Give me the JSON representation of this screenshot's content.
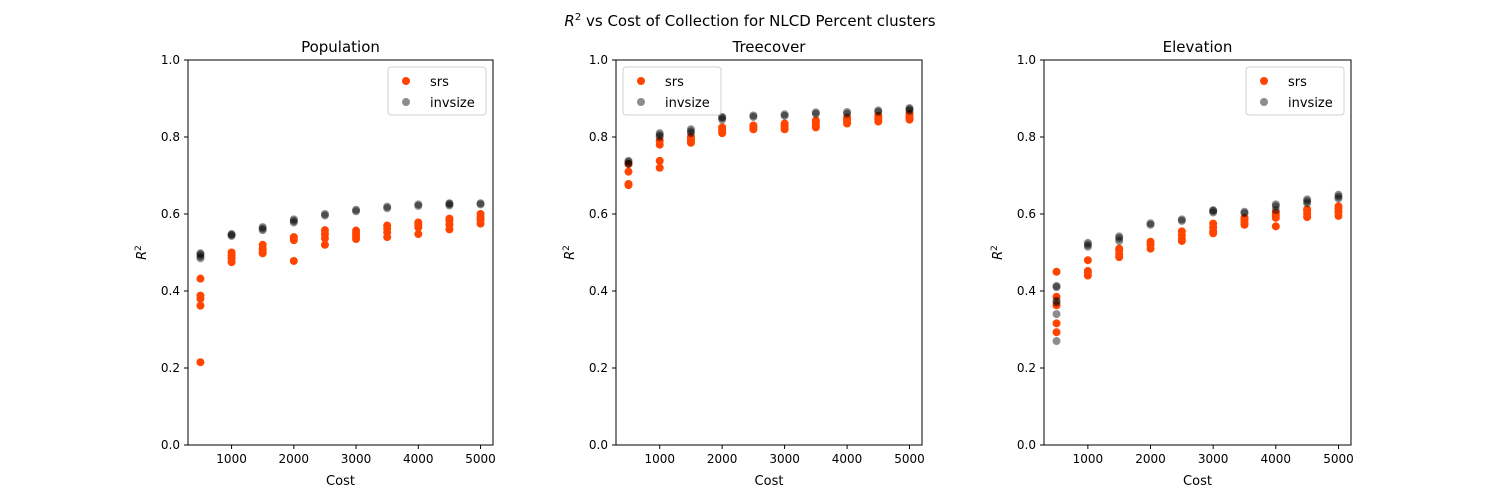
{
  "figure": {
    "suptitle_main": "R",
    "suptitle_sup": "2",
    "suptitle_rest": " vs Cost of Collection for NLCD Percent clusters"
  },
  "chart_data": [
    {
      "type": "scatter",
      "title": "Population",
      "xlabel": "Cost",
      "ylabel": "R^2",
      "xlim": [
        300,
        5200
      ],
      "ylim": [
        0,
        1
      ],
      "xticks": [
        1000,
        2000,
        3000,
        4000,
        5000
      ],
      "yticks": [
        0.0,
        0.2,
        0.4,
        0.6,
        0.8,
        1.0
      ],
      "legend_position": "top-right",
      "series": [
        {
          "name": "invsize",
          "color": "#000000",
          "points": [
            [
              500,
              0.485
            ],
            [
              500,
              0.49
            ],
            [
              500,
              0.495
            ],
            [
              500,
              0.498
            ],
            [
              1000,
              0.543
            ],
            [
              1000,
              0.546
            ],
            [
              1000,
              0.548
            ],
            [
              1500,
              0.558
            ],
            [
              1500,
              0.562
            ],
            [
              1500,
              0.566
            ],
            [
              2000,
              0.578
            ],
            [
              2000,
              0.582
            ],
            [
              2000,
              0.586
            ],
            [
              2500,
              0.596
            ],
            [
              2500,
              0.6
            ],
            [
              3000,
              0.607
            ],
            [
              3000,
              0.611
            ],
            [
              3500,
              0.615
            ],
            [
              3500,
              0.619
            ],
            [
              4000,
              0.621
            ],
            [
              4000,
              0.625
            ],
            [
              4500,
              0.622
            ],
            [
              4500,
              0.626
            ],
            [
              4500,
              0.628
            ],
            [
              5000,
              0.625
            ],
            [
              5000,
              0.628
            ]
          ]
        },
        {
          "name": "srs",
          "color": "#ff4500",
          "points": [
            [
              500,
              0.215
            ],
            [
              500,
              0.362
            ],
            [
              500,
              0.38
            ],
            [
              500,
              0.388
            ],
            [
              500,
              0.432
            ],
            [
              1000,
              0.475
            ],
            [
              1000,
              0.485
            ],
            [
              1000,
              0.492
            ],
            [
              1000,
              0.5
            ],
            [
              1500,
              0.498
            ],
            [
              1500,
              0.505
            ],
            [
              1500,
              0.51
            ],
            [
              1500,
              0.52
            ],
            [
              2000,
              0.478
            ],
            [
              2000,
              0.532
            ],
            [
              2000,
              0.538
            ],
            [
              2000,
              0.54
            ],
            [
              2500,
              0.52
            ],
            [
              2500,
              0.537
            ],
            [
              2500,
              0.548
            ],
            [
              2500,
              0.558
            ],
            [
              3000,
              0.535
            ],
            [
              3000,
              0.542
            ],
            [
              3000,
              0.55
            ],
            [
              3000,
              0.557
            ],
            [
              3500,
              0.54
            ],
            [
              3500,
              0.552
            ],
            [
              3500,
              0.563
            ],
            [
              3500,
              0.57
            ],
            [
              4000,
              0.548
            ],
            [
              4000,
              0.565
            ],
            [
              4000,
              0.572
            ],
            [
              4000,
              0.578
            ],
            [
              4500,
              0.56
            ],
            [
              4500,
              0.572
            ],
            [
              4500,
              0.582
            ],
            [
              4500,
              0.588
            ],
            [
              5000,
              0.575
            ],
            [
              5000,
              0.585
            ],
            [
              5000,
              0.592
            ],
            [
              5000,
              0.6
            ]
          ]
        }
      ]
    },
    {
      "type": "scatter",
      "title": "Treecover",
      "xlabel": "Cost",
      "ylabel": "R^2",
      "xlim": [
        300,
        5200
      ],
      "ylim": [
        0,
        1
      ],
      "xticks": [
        1000,
        2000,
        3000,
        4000,
        5000
      ],
      "yticks": [
        0.0,
        0.2,
        0.4,
        0.6,
        0.8,
        1.0
      ],
      "legend_position": "top-left",
      "series": [
        {
          "name": "invsize",
          "color": "#000000",
          "points": [
            [
              500,
              0.73
            ],
            [
              500,
              0.735
            ],
            [
              500,
              0.738
            ],
            [
              1000,
              0.8
            ],
            [
              1000,
              0.805
            ],
            [
              1000,
              0.81
            ],
            [
              1500,
              0.81
            ],
            [
              1500,
              0.815
            ],
            [
              1500,
              0.82
            ],
            [
              2000,
              0.845
            ],
            [
              2000,
              0.85
            ],
            [
              2000,
              0.852
            ],
            [
              2500,
              0.852
            ],
            [
              2500,
              0.856
            ],
            [
              3000,
              0.855
            ],
            [
              3000,
              0.859
            ],
            [
              3500,
              0.86
            ],
            [
              3500,
              0.864
            ],
            [
              4000,
              0.86
            ],
            [
              4000,
              0.865
            ],
            [
              4500,
              0.865
            ],
            [
              4500,
              0.869
            ],
            [
              5000,
              0.868
            ],
            [
              5000,
              0.872
            ],
            [
              5000,
              0.875
            ]
          ]
        },
        {
          "name": "srs",
          "color": "#ff4500",
          "points": [
            [
              500,
              0.675
            ],
            [
              500,
              0.678
            ],
            [
              500,
              0.71
            ],
            [
              500,
              0.73
            ],
            [
              1000,
              0.72
            ],
            [
              1000,
              0.738
            ],
            [
              1000,
              0.78
            ],
            [
              1000,
              0.79
            ],
            [
              1500,
              0.785
            ],
            [
              1500,
              0.79
            ],
            [
              1500,
              0.795
            ],
            [
              1500,
              0.8
            ],
            [
              2000,
              0.81
            ],
            [
              2000,
              0.815
            ],
            [
              2000,
              0.82
            ],
            [
              2000,
              0.825
            ],
            [
              2500,
              0.82
            ],
            [
              2500,
              0.825
            ],
            [
              2500,
              0.83
            ],
            [
              3000,
              0.82
            ],
            [
              3000,
              0.825
            ],
            [
              3000,
              0.83
            ],
            [
              3000,
              0.835
            ],
            [
              3500,
              0.825
            ],
            [
              3500,
              0.83
            ],
            [
              3500,
              0.838
            ],
            [
              3500,
              0.843
            ],
            [
              4000,
              0.835
            ],
            [
              4000,
              0.84
            ],
            [
              4000,
              0.845
            ],
            [
              4000,
              0.85
            ],
            [
              4500,
              0.84
            ],
            [
              4500,
              0.845
            ],
            [
              4500,
              0.85
            ],
            [
              4500,
              0.855
            ],
            [
              5000,
              0.845
            ],
            [
              5000,
              0.85
            ],
            [
              5000,
              0.855
            ],
            [
              5000,
              0.86
            ]
          ]
        }
      ]
    },
    {
      "type": "scatter",
      "title": "Elevation",
      "xlabel": "Cost",
      "ylabel": "R^2",
      "xlim": [
        300,
        5200
      ],
      "ylim": [
        0,
        1
      ],
      "xticks": [
        1000,
        2000,
        3000,
        4000,
        5000
      ],
      "yticks": [
        0.0,
        0.2,
        0.4,
        0.6,
        0.8,
        1.0
      ],
      "legend_position": "top-right",
      "series": [
        {
          "name": "invsize",
          "color": "#000000",
          "points": [
            [
              500,
              0.27
            ],
            [
              500,
              0.34
            ],
            [
              500,
              0.37
            ],
            [
              500,
              0.375
            ],
            [
              500,
              0.41
            ],
            [
              500,
              0.413
            ],
            [
              1000,
              0.515
            ],
            [
              1000,
              0.52
            ],
            [
              1000,
              0.525
            ],
            [
              1500,
              0.53
            ],
            [
              1500,
              0.537
            ],
            [
              1500,
              0.542
            ],
            [
              2000,
              0.572
            ],
            [
              2000,
              0.576
            ],
            [
              2500,
              0.582
            ],
            [
              2500,
              0.586
            ],
            [
              3000,
              0.604
            ],
            [
              3000,
              0.608
            ],
            [
              3000,
              0.61
            ],
            [
              3500,
              0.602
            ],
            [
              3500,
              0.606
            ],
            [
              4000,
              0.61
            ],
            [
              4000,
              0.62
            ],
            [
              4000,
              0.625
            ],
            [
              4500,
              0.628
            ],
            [
              4500,
              0.633
            ],
            [
              4500,
              0.638
            ],
            [
              5000,
              0.64
            ],
            [
              5000,
              0.645
            ],
            [
              5000,
              0.65
            ]
          ]
        },
        {
          "name": "srs",
          "color": "#ff4500",
          "points": [
            [
              500,
              0.293
            ],
            [
              500,
              0.316
            ],
            [
              500,
              0.363
            ],
            [
              500,
              0.385
            ],
            [
              500,
              0.45
            ],
            [
              1000,
              0.44
            ],
            [
              1000,
              0.447
            ],
            [
              1000,
              0.452
            ],
            [
              1000,
              0.48
            ],
            [
              1500,
              0.488
            ],
            [
              1500,
              0.495
            ],
            [
              1500,
              0.505
            ],
            [
              1500,
              0.51
            ],
            [
              2000,
              0.51
            ],
            [
              2000,
              0.52
            ],
            [
              2000,
              0.528
            ],
            [
              2500,
              0.53
            ],
            [
              2500,
              0.535
            ],
            [
              2500,
              0.545
            ],
            [
              2500,
              0.555
            ],
            [
              3000,
              0.55
            ],
            [
              3000,
              0.555
            ],
            [
              3000,
              0.565
            ],
            [
              3000,
              0.575
            ],
            [
              3500,
              0.572
            ],
            [
              3500,
              0.578
            ],
            [
              3500,
              0.585
            ],
            [
              3500,
              0.59
            ],
            [
              4000,
              0.568
            ],
            [
              4000,
              0.59
            ],
            [
              4000,
              0.597
            ],
            [
              4000,
              0.603
            ],
            [
              4500,
              0.592
            ],
            [
              4500,
              0.6
            ],
            [
              4500,
              0.608
            ],
            [
              4500,
              0.612
            ],
            [
              5000,
              0.595
            ],
            [
              5000,
              0.605
            ],
            [
              5000,
              0.612
            ],
            [
              5000,
              0.62
            ]
          ]
        }
      ]
    }
  ]
}
